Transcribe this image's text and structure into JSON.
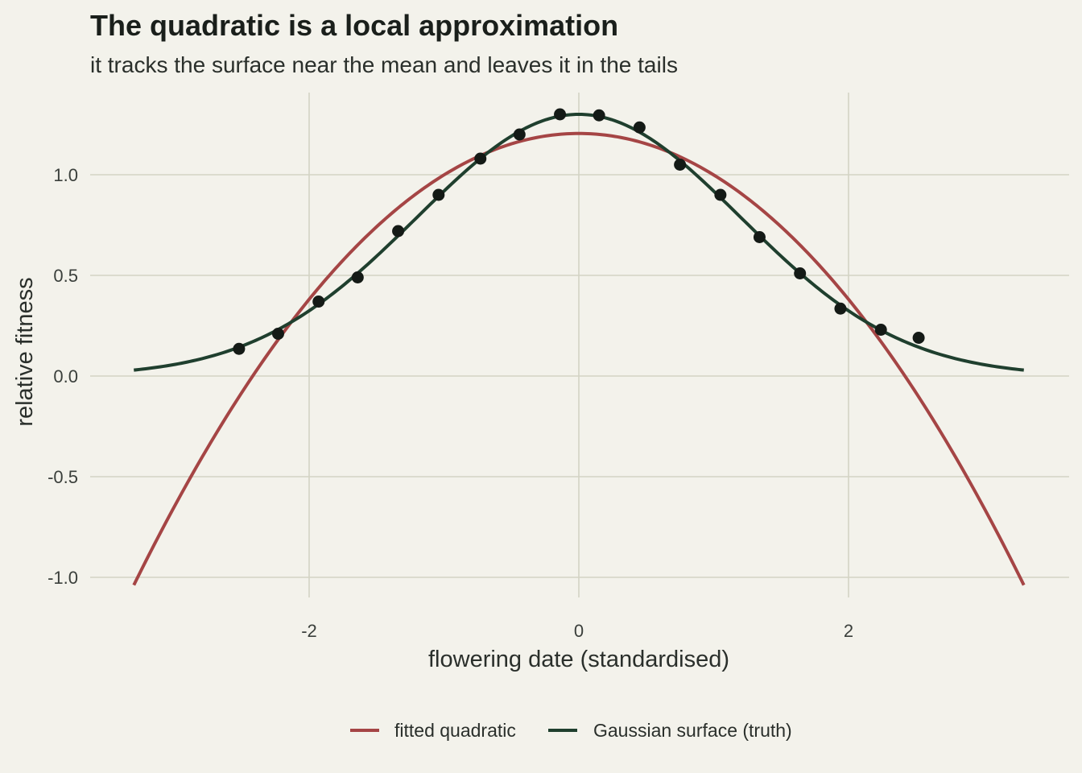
{
  "chart_data": {
    "type": "line",
    "title": "The quadratic is a local approximation",
    "subtitle": "it tracks the surface near the mean and leaves it in the tails",
    "xlabel": "flowering date (standardised)",
    "ylabel": "relative fitness",
    "xlim": [
      -3.3,
      3.3
    ],
    "ylim": [
      -1.05,
      1.35
    ],
    "x_ticks": [
      -2,
      0,
      2
    ],
    "x_tick_labels": [
      "-2",
      "0",
      "2"
    ],
    "y_ticks": [
      -1.0,
      -0.5,
      0.0,
      0.5,
      1.0
    ],
    "y_tick_labels": [
      "-1.0",
      "-0.5",
      "0.0",
      "0.5",
      "1.0"
    ],
    "grid": true,
    "legend_position": "bottom",
    "colors": {
      "quadratic": "#a54545",
      "gaussian": "#1f3f2e",
      "points": "#141a16",
      "background": "#f3f2eb"
    },
    "series": [
      {
        "name": "fitted quadratic",
        "curve": "quadratic",
        "coefficients": {
          "intercept": 1.205,
          "linear": 0.0,
          "squared": -0.206
        }
      },
      {
        "name": "Gaussian surface (truth)",
        "curve": "gaussian",
        "parameters": {
          "peak": 1.3,
          "mean": 0.0,
          "sd": 1.2
        }
      }
    ],
    "points": {
      "x": [
        -2.52,
        -2.23,
        -1.93,
        -1.64,
        -1.34,
        -1.04,
        -0.73,
        -0.44,
        -0.14,
        0.15,
        0.45,
        0.75,
        1.05,
        1.34,
        1.64,
        1.94,
        2.24,
        2.52
      ],
      "y": [
        0.135,
        0.21,
        0.37,
        0.49,
        0.72,
        0.9,
        1.08,
        1.2,
        1.3,
        1.295,
        1.235,
        1.05,
        0.9,
        0.69,
        0.51,
        0.335,
        0.23,
        0.19
      ]
    }
  }
}
